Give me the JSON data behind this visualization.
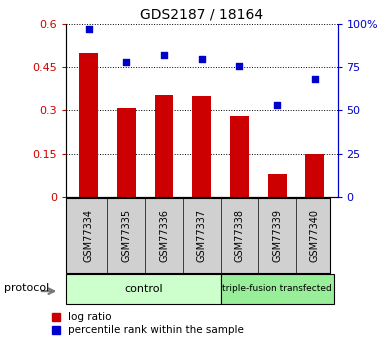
{
  "title": "GDS2187 / 18164",
  "samples": [
    "GSM77334",
    "GSM77335",
    "GSM77336",
    "GSM77337",
    "GSM77338",
    "GSM77339",
    "GSM77340"
  ],
  "log_ratio": [
    0.5,
    0.31,
    0.355,
    0.35,
    0.28,
    0.08,
    0.15
  ],
  "percentile_rank": [
    97,
    78,
    82,
    80,
    76,
    53,
    68
  ],
  "bar_color": "#CC0000",
  "scatter_color": "#0000CC",
  "ylim_left": [
    0,
    0.6
  ],
  "ylim_right": [
    0,
    100
  ],
  "yticks_left": [
    0,
    0.15,
    0.3,
    0.45,
    0.6
  ],
  "yticks_right": [
    0,
    25,
    50,
    75,
    100
  ],
  "ytick_labels_left": [
    "0",
    "0.15",
    "0.3",
    "0.45",
    "0.6"
  ],
  "ytick_labels_right": [
    "0",
    "25",
    "50",
    "75",
    "100%"
  ],
  "n_control": 4,
  "n_transfected": 3,
  "control_label": "control",
  "transfected_label": "triple-fusion transfected",
  "protocol_label": "protocol",
  "legend_bar_label": "log ratio",
  "legend_scatter_label": "percentile rank within the sample",
  "control_bg_color": "#ccffcc",
  "transfected_bg_color": "#99ee99",
  "sample_box_color": "#d0d0d0",
  "tick_label_color_left": "#CC0000",
  "tick_label_color_right": "#0000CC",
  "bar_width": 0.5,
  "title_fontsize": 10,
  "axis_fontsize": 8,
  "label_fontsize": 8
}
